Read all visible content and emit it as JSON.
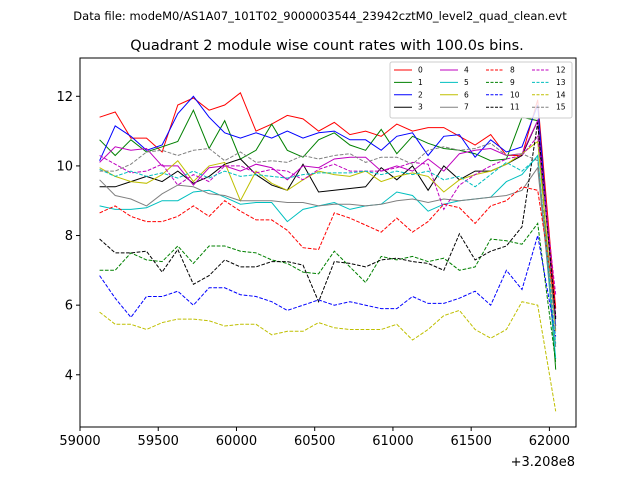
{
  "chart_data": {
    "type": "line",
    "suptitle": "Data file: modeM0/AS1A07_101T02_9000003544_23942cztM0_level2_quad_clean.evt",
    "title": "Quadrant 2 module wise count rates with 100.0s bins.",
    "xlabel": "",
    "ylabel": "",
    "x_offset_label": "+3.208e8",
    "xlim": [
      59000,
      62170
    ],
    "ylim": [
      2.5,
      13.1
    ],
    "xticks": [
      59000,
      59500,
      60000,
      60500,
      61000,
      61500,
      62000
    ],
    "yticks": [
      4,
      6,
      8,
      10,
      12
    ],
    "legend_position": "top-right",
    "x": [
      59125,
      59225,
      59325,
      59425,
      59525,
      59625,
      59725,
      59825,
      59925,
      60025,
      60125,
      60225,
      60325,
      60425,
      60525,
      60625,
      60725,
      60825,
      60925,
      61025,
      61125,
      61225,
      61325,
      61425,
      61525,
      61625,
      61725,
      61825,
      61925,
      62040
    ],
    "series": [
      {
        "name": "0",
        "color": "#ff0000",
        "dash": "solid",
        "values": [
          11.4,
          11.55,
          10.8,
          10.8,
          10.4,
          11.75,
          11.95,
          11.6,
          11.75,
          12.1,
          11.0,
          11.2,
          11.45,
          11.35,
          11.0,
          11.25,
          10.9,
          11.0,
          10.85,
          11.2,
          11.0,
          11.1,
          11.1,
          10.85,
          10.6,
          10.9,
          10.3,
          10.3,
          11.9,
          5.9
        ]
      },
      {
        "name": "1",
        "color": "#008000",
        "dash": "solid",
        "values": [
          10.75,
          10.3,
          10.75,
          10.4,
          10.55,
          10.7,
          11.6,
          10.5,
          11.3,
          10.2,
          10.45,
          11.2,
          10.45,
          10.25,
          10.75,
          10.95,
          10.6,
          10.45,
          11.05,
          10.35,
          10.85,
          10.65,
          10.5,
          10.45,
          10.35,
          10.15,
          10.2,
          11.4,
          11.3,
          4.15
        ]
      },
      {
        "name": "2",
        "color": "#0000ff",
        "dash": "solid",
        "values": [
          10.15,
          11.15,
          10.85,
          10.45,
          10.6,
          11.5,
          12.0,
          11.4,
          10.95,
          10.8,
          10.95,
          10.8,
          11.0,
          10.8,
          10.95,
          11.0,
          10.75,
          10.75,
          10.45,
          10.85,
          10.95,
          10.3,
          10.85,
          10.9,
          10.25,
          10.75,
          10.4,
          10.55,
          11.75,
          5.4
        ]
      },
      {
        "name": "3",
        "color": "#000000",
        "dash": "solid",
        "values": [
          9.4,
          9.4,
          9.55,
          9.7,
          9.55,
          9.85,
          9.5,
          9.7,
          10.05,
          10.2,
          9.75,
          9.45,
          9.3,
          10.05,
          9.25,
          9.3,
          9.35,
          9.4,
          9.95,
          9.6,
          10.0,
          9.3,
          10.0,
          9.6,
          9.85,
          9.85,
          10.05,
          10.3,
          11.3,
          5.6
        ]
      },
      {
        "name": "4",
        "color": "#bf00bf",
        "dash": "solid",
        "values": [
          10.1,
          10.55,
          10.45,
          10.5,
          10.0,
          10.0,
          9.45,
          9.95,
          10.0,
          9.85,
          10.05,
          9.95,
          9.6,
          10.0,
          9.95,
          10.2,
          10.25,
          10.25,
          9.85,
          10.0,
          9.85,
          10.2,
          9.85,
          10.35,
          10.45,
          10.5,
          10.3,
          10.35,
          11.3,
          5.65
        ]
      },
      {
        "name": "5",
        "color": "#00bfbf",
        "dash": "solid",
        "values": [
          8.85,
          8.75,
          8.75,
          8.8,
          9.0,
          9.0,
          9.25,
          9.3,
          9.1,
          8.9,
          8.95,
          8.95,
          8.4,
          8.75,
          8.85,
          8.95,
          8.75,
          8.85,
          8.9,
          9.25,
          9.15,
          8.7,
          8.9,
          9.0,
          9.05,
          9.1,
          9.55,
          9.75,
          10.3,
          4.45
        ]
      },
      {
        "name": "6",
        "color": "#bfbf00",
        "dash": "solid",
        "values": [
          9.95,
          9.7,
          9.55,
          9.5,
          9.75,
          10.15,
          9.55,
          10.0,
          10.1,
          9.0,
          9.85,
          9.5,
          9.3,
          9.6,
          9.85,
          9.75,
          9.7,
          9.85,
          9.55,
          9.7,
          9.8,
          9.7,
          9.25,
          9.6,
          9.75,
          9.85,
          10.05,
          10.35,
          10.7,
          5.25
        ]
      },
      {
        "name": "7",
        "color": "#808080",
        "dash": "solid",
        "values": [
          9.6,
          9.15,
          9.05,
          8.85,
          9.2,
          9.45,
          9.4,
          9.2,
          9.15,
          9.0,
          9.0,
          9.0,
          8.95,
          8.95,
          8.85,
          8.9,
          8.9,
          8.85,
          8.9,
          9.0,
          9.05,
          8.95,
          9.05,
          9.0,
          9.05,
          9.1,
          9.15,
          9.3,
          9.95,
          4.8
        ]
      },
      {
        "name": "8",
        "color": "#ff0000",
        "dash": "dashed",
        "values": [
          8.65,
          8.85,
          8.55,
          8.4,
          8.4,
          8.55,
          8.85,
          8.55,
          9.0,
          8.7,
          8.45,
          8.45,
          8.15,
          7.65,
          7.6,
          8.65,
          8.5,
          8.3,
          8.1,
          8.5,
          8.1,
          8.4,
          8.9,
          8.8,
          8.35,
          8.85,
          9.0,
          9.4,
          9.3,
          5.95
        ]
      },
      {
        "name": "9",
        "color": "#008000",
        "dash": "dashed",
        "values": [
          7.0,
          7.0,
          7.5,
          7.3,
          7.25,
          7.7,
          7.2,
          7.7,
          7.7,
          7.55,
          7.5,
          7.3,
          7.2,
          6.95,
          6.9,
          7.55,
          7.1,
          6.65,
          7.4,
          7.3,
          7.4,
          7.25,
          7.35,
          7.0,
          7.1,
          7.9,
          7.85,
          7.75,
          8.35,
          4.35
        ]
      },
      {
        "name": "10",
        "color": "#0000ff",
        "dash": "dashed",
        "values": [
          6.85,
          6.2,
          5.65,
          6.25,
          6.25,
          6.4,
          6.0,
          6.5,
          6.5,
          6.3,
          6.25,
          6.1,
          5.85,
          6.0,
          6.15,
          6.0,
          6.1,
          6.0,
          5.9,
          5.9,
          6.25,
          6.05,
          6.05,
          6.2,
          6.4,
          6.0,
          7.0,
          6.45,
          8.0,
          5.1
        ]
      },
      {
        "name": "11",
        "color": "#000000",
        "dash": "dashed",
        "values": [
          7.9,
          7.5,
          7.5,
          7.55,
          6.95,
          7.6,
          6.6,
          6.85,
          7.3,
          7.1,
          7.1,
          7.25,
          7.25,
          7.15,
          6.1,
          7.25,
          7.2,
          7.1,
          7.3,
          7.35,
          7.25,
          7.2,
          7.0,
          8.05,
          7.3,
          7.55,
          7.7,
          8.25,
          11.25,
          5.65
        ]
      },
      {
        "name": "12",
        "color": "#bf00bf",
        "dash": "dashed",
        "values": [
          10.3,
          10.05,
          9.8,
          9.85,
          10.05,
          9.45,
          9.75,
          9.55,
          10.0,
          10.0,
          9.8,
          9.9,
          9.85,
          9.6,
          9.9,
          10.05,
          9.85,
          9.85,
          9.85,
          9.95,
          10.1,
          10.05,
          8.75,
          9.45,
          9.75,
          10.0,
          10.2,
          10.3,
          10.85,
          6.3
        ]
      },
      {
        "name": "13",
        "color": "#00bfbf",
        "dash": "dashed",
        "values": [
          9.9,
          9.7,
          9.85,
          9.7,
          9.8,
          9.65,
          9.85,
          9.65,
          9.85,
          9.7,
          9.75,
          9.7,
          9.65,
          9.75,
          9.8,
          9.8,
          9.8,
          9.85,
          9.75,
          9.85,
          9.75,
          9.85,
          9.6,
          9.7,
          9.4,
          9.75,
          10.1,
          9.85,
          10.25,
          4.9
        ]
      },
      {
        "name": "14",
        "color": "#bfbf00",
        "dash": "dashed",
        "values": [
          5.8,
          5.45,
          5.45,
          5.3,
          5.5,
          5.6,
          5.6,
          5.55,
          5.4,
          5.45,
          5.45,
          5.15,
          5.25,
          5.25,
          5.5,
          5.35,
          5.3,
          5.3,
          5.3,
          5.45,
          5.0,
          5.3,
          5.7,
          5.85,
          5.3,
          5.05,
          5.3,
          6.1,
          6.0,
          2.95
        ]
      },
      {
        "name": "15",
        "color": "#808080",
        "dash": "dashed",
        "values": [
          9.85,
          9.85,
          10.05,
          10.4,
          10.45,
          10.3,
          10.45,
          10.5,
          10.15,
          10.4,
          10.1,
          10.15,
          10.1,
          10.3,
          10.2,
          10.3,
          10.35,
          10.1,
          10.25,
          10.25,
          10.05,
          10.45,
          10.55,
          10.45,
          10.5,
          10.65,
          10.3,
          10.35,
          10.15,
          5.3
        ]
      }
    ]
  }
}
